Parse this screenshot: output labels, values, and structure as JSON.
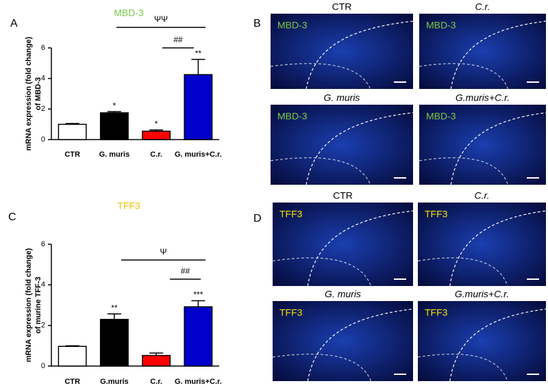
{
  "chart_data": [
    {
      "type": "bar",
      "panel": "A",
      "title": "MBD-3",
      "title_color": "#7ac943",
      "y_label": [
        "mRNA expression (fold change)",
        "of MBD-3"
      ],
      "categories": [
        "CTR",
        "G. muris",
        "C.r.",
        "G. muris+C.r."
      ],
      "values": [
        1.0,
        1.75,
        0.55,
        4.25
      ],
      "errors": [
        0.05,
        0.08,
        0.08,
        1.0
      ],
      "colors": [
        "#ffffff",
        "#000000",
        "#ff0000",
        "#0000cc"
      ],
      "significance": [
        null,
        "*",
        "*",
        "**"
      ],
      "brackets": [
        "ΨΨ",
        "##"
      ],
      "ylim": [
        0,
        6
      ],
      "yticks": [
        0,
        2,
        4,
        6
      ]
    },
    {
      "type": "bar",
      "panel": "C",
      "title": "TFF3",
      "title_color": "#f2c200",
      "y_label": [
        "mRNA expression (fold change)",
        "of murine TFF-3"
      ],
      "categories": [
        "CTR",
        "G.muris",
        "C.r.",
        "G. muris+C.r."
      ],
      "values": [
        0.97,
        2.3,
        0.52,
        2.92
      ],
      "errors": [
        0.03,
        0.27,
        0.12,
        0.3
      ],
      "colors": [
        "#ffffff",
        "#000000",
        "#ff0000",
        "#0000cc"
      ],
      "significance": [
        null,
        "**",
        null,
        "***"
      ],
      "brackets": [
        "Ψ",
        "##"
      ],
      "ylim": [
        0,
        6
      ],
      "yticks": [
        0,
        2,
        4,
        6
      ]
    }
  ],
  "image_panels": [
    {
      "label": "B",
      "stain_color": "#7ac943",
      "images": [
        {
          "title": "CTR",
          "stain": "MBD-3"
        },
        {
          "title": "C.r.",
          "stain": "MBD-3"
        },
        {
          "title": "G. muris",
          "stain": "MBD-3"
        },
        {
          "title": "G.muris+C.r.",
          "stain": "MBD-3"
        }
      ]
    },
    {
      "label": "D",
      "stain_color": "#f5e000",
      "images": [
        {
          "title": "CTR",
          "stain": "TFF3"
        },
        {
          "title": "C.r.",
          "stain": "TFF3"
        },
        {
          "title": "G. muris",
          "stain": "TFF3"
        },
        {
          "title": "G.muris+C.r.",
          "stain": "TFF3"
        }
      ]
    }
  ]
}
